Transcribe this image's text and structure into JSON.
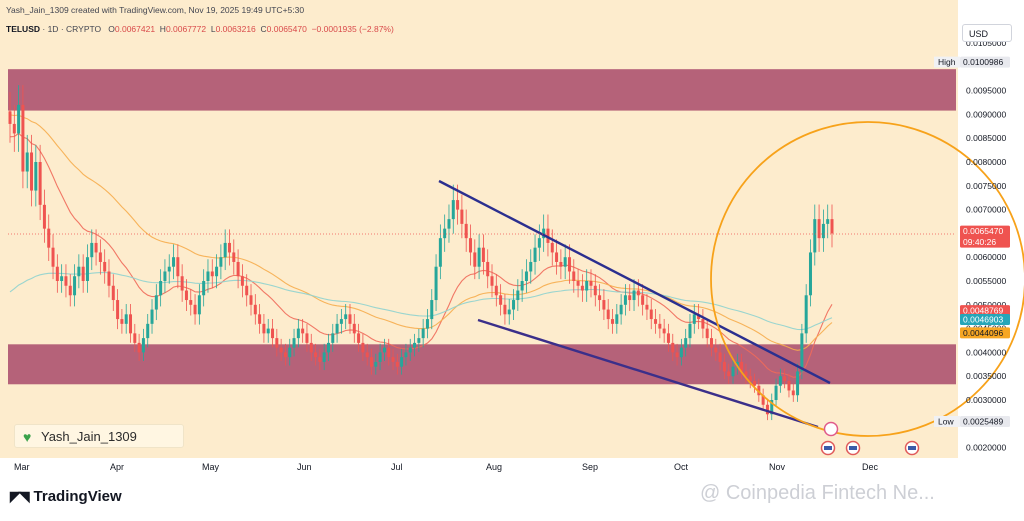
{
  "header": {
    "caption": "Yash_Jain_1309 created with TradingView.com, Nov 19, 2025 19:49 UTC+5:30",
    "symbol": "TELUSD",
    "interval": "1D",
    "market": "CRYPTO",
    "ohlc": {
      "o_label": "O",
      "o": "0.0067421",
      "h_label": "H",
      "h": "0.0067772",
      "l_label": "L",
      "l": "0.0063216",
      "c_label": "C",
      "c": "0.0065470",
      "change": "−0.0001935 (−2.87%)"
    },
    "currency": "USD"
  },
  "author_badge": "Yash_Jain_1309",
  "footer": {
    "brand": "TradingView",
    "watermark": "@ Coinpedia Fintech Ne..."
  },
  "colors": {
    "background": "#fdeccd",
    "zone": "#a84a6a",
    "up": "#26a69a",
    "down": "#ef5350",
    "trendline": "#2b2f8f",
    "wedge_lower": "#3b2f8a",
    "circle": "#f7a21a",
    "ema_fast": "#ef6a5a",
    "ema_mid": "#f6ad4e",
    "ema_slow": "#8fd3cf"
  },
  "chart_data": {
    "type": "candlestick",
    "x_tick_labels": [
      "Mar",
      "Apr",
      "May",
      "Jun",
      "Jul",
      "Aug",
      "Sep",
      "Oct",
      "Nov",
      "Dec"
    ],
    "y_tick_labels": [
      "0.0020000",
      "0.0030000",
      "0.0035000",
      "0.0040000",
      "0.0045000",
      "0.0050000",
      "0.0055000",
      "0.0060000",
      "0.0070000",
      "0.0075000",
      "0.0080000",
      "0.0085000",
      "0.0090000",
      "0.0095000",
      "0.0105000"
    ],
    "ylim": [
      0.0018,
      0.0108
    ],
    "price_labels": [
      {
        "tag": "High",
        "value": "0.0100986",
        "color": "#e8e9ee",
        "text_color": "#131722"
      },
      {
        "tag": "",
        "value": "0.0065470",
        "sub": "09:40:26",
        "color": "#ef5350",
        "text_color": "#ffffff"
      },
      {
        "tag": "",
        "value": "0.0048769",
        "color": "#ef5350",
        "text_color": "#ffffff"
      },
      {
        "tag": "",
        "value": "0.0046903",
        "color": "#26a6b8",
        "text_color": "#ffffff"
      },
      {
        "tag": "",
        "value": "0.0044096",
        "color": "#f6a623",
        "text_color": "#131722"
      },
      {
        "tag": "Low",
        "value": "0.0025489",
        "color": "#e8e9ee",
        "text_color": "#131722"
      }
    ],
    "zones": [
      {
        "from": 0.00908,
        "to": 0.00995
      },
      {
        "from": 0.00333,
        "to": 0.00417
      }
    ],
    "closes": [
      0.0088,
      0.0086,
      0.0092,
      0.0078,
      0.0082,
      0.0074,
      0.008,
      0.0071,
      0.0066,
      0.0062,
      0.0058,
      0.0055,
      0.0056,
      0.0054,
      0.0052,
      0.0056,
      0.0058,
      0.0055,
      0.006,
      0.0063,
      0.0061,
      0.0059,
      0.0057,
      0.0054,
      0.0051,
      0.0047,
      0.0046,
      0.0048,
      0.0044,
      0.0042,
      0.004,
      0.0043,
      0.0046,
      0.0049,
      0.0052,
      0.0055,
      0.0057,
      0.0058,
      0.006,
      0.0056,
      0.0053,
      0.0051,
      0.005,
      0.0048,
      0.0052,
      0.0055,
      0.0057,
      0.0056,
      0.0058,
      0.006,
      0.0063,
      0.0061,
      0.0059,
      0.0056,
      0.0054,
      0.0052,
      0.005,
      0.0048,
      0.0046,
      0.0044,
      0.0045,
      0.0043,
      0.0041,
      0.004,
      0.0039,
      0.0041,
      0.0043,
      0.0045,
      0.0044,
      0.0042,
      0.004,
      0.0039,
      0.0038,
      0.004,
      0.0042,
      0.0044,
      0.0046,
      0.0047,
      0.0048,
      0.0046,
      0.0044,
      0.0042,
      0.004,
      0.0039,
      0.0037,
      0.0038,
      0.004,
      0.0041,
      0.0039,
      0.0038,
      0.0037,
      0.0039,
      0.004,
      0.0041,
      0.0042,
      0.0043,
      0.0045,
      0.0047,
      0.0051,
      0.0058,
      0.0064,
      0.0066,
      0.0068,
      0.0072,
      0.007,
      0.0067,
      0.0064,
      0.0061,
      0.0058,
      0.0062,
      0.0059,
      0.0056,
      0.0054,
      0.0052,
      0.005,
      0.0048,
      0.0049,
      0.0051,
      0.0053,
      0.0055,
      0.0057,
      0.0059,
      0.0062,
      0.0064,
      0.0066,
      0.0063,
      0.0061,
      0.0059,
      0.0058,
      0.006,
      0.0057,
      0.0055,
      0.0054,
      0.0053,
      0.0055,
      0.0054,
      0.0052,
      0.0051,
      0.0049,
      0.0047,
      0.0046,
      0.0048,
      0.005,
      0.0052,
      0.0051,
      0.0053,
      0.0052,
      0.005,
      0.0049,
      0.0047,
      0.0046,
      0.0045,
      0.0044,
      0.0042,
      0.004,
      0.0039,
      0.0041,
      0.0043,
      0.0046,
      0.0048,
      0.0047,
      0.0045,
      0.0043,
      0.0041,
      0.004,
      0.0038,
      0.0036,
      0.0035,
      0.0037,
      0.0038,
      0.0036,
      0.0035,
      0.0034,
      0.0033,
      0.0031,
      0.0029,
      0.0027,
      0.003,
      0.0033,
      0.0035,
      0.0034,
      0.0032,
      0.0031,
      0.0036,
      0.0044,
      0.0052,
      0.0061,
      0.0068,
      0.0064,
      0.0067,
      0.0068,
      0.0065
    ]
  }
}
